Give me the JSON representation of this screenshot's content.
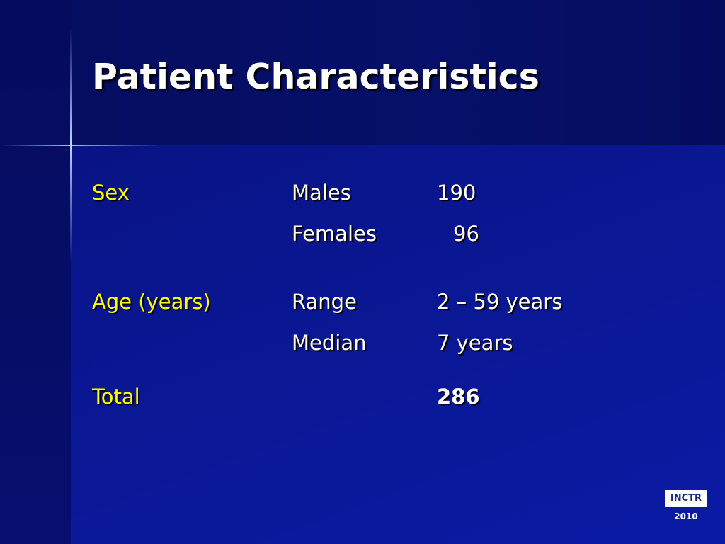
{
  "title": "Patient Characteristics",
  "rows": [
    {
      "label": "Sex",
      "items": [
        [
          "Males",
          190
        ],
        [
          "Females",
          96
        ]
      ]
    },
    {
      "label": "Age (years)",
      "items": [
        [
          "Range",
          "2 – 59 years"
        ],
        [
          "Median",
          "7 years"
        ]
      ]
    },
    {
      "label": "Total",
      "value": 286
    }
  ],
  "logo": {
    "text": "INCTR",
    "year": "2010"
  }
}
